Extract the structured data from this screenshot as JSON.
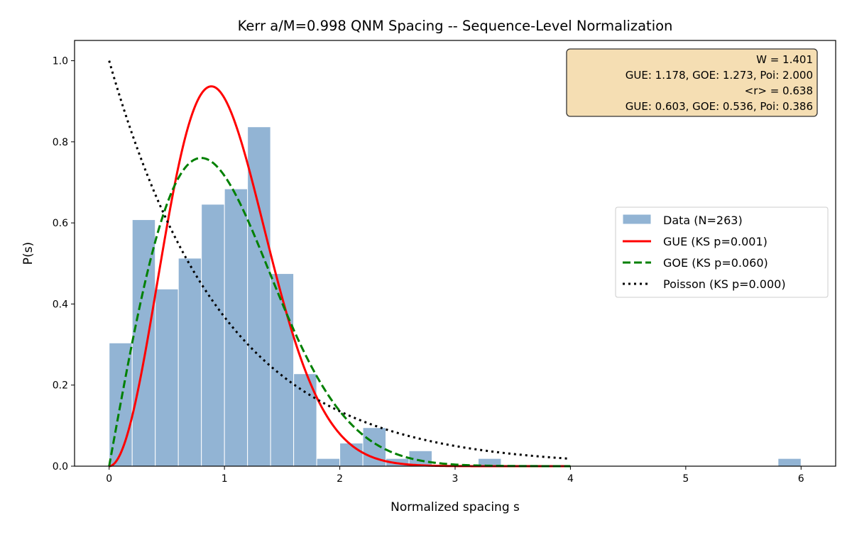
{
  "chart_data": {
    "type": "bar",
    "title": "Kerr a/M=0.998 QNM Spacing -- Sequence-Level Normalization",
    "xlabel": "Normalized spacing s",
    "ylabel": "P(s)",
    "xlim": [
      -0.3,
      6.3
    ],
    "ylim": [
      0,
      1.05
    ],
    "xticks": [
      0,
      1,
      2,
      3,
      4,
      5,
      6
    ],
    "yticks": [
      0.0,
      0.2,
      0.4,
      0.6,
      0.8,
      1.0
    ],
    "grid": false,
    "histogram": {
      "name": "Data (N=263)",
      "color": "#92b4d4",
      "bins": [
        {
          "left": 0.0,
          "right": 0.2,
          "value": 0.304
        },
        {
          "left": 0.2,
          "right": 0.4,
          "value": 0.608
        },
        {
          "left": 0.4,
          "right": 0.6,
          "value": 0.437
        },
        {
          "left": 0.6,
          "right": 0.8,
          "value": 0.513
        },
        {
          "left": 0.8,
          "right": 1.0,
          "value": 0.646
        },
        {
          "left": 1.0,
          "right": 1.2,
          "value": 0.684
        },
        {
          "left": 1.2,
          "right": 1.4,
          "value": 0.837
        },
        {
          "left": 1.4,
          "right": 1.6,
          "value": 0.475
        },
        {
          "left": 1.6,
          "right": 1.8,
          "value": 0.228
        },
        {
          "left": 1.8,
          "right": 2.0,
          "value": 0.019
        },
        {
          "left": 2.0,
          "right": 2.2,
          "value": 0.057
        },
        {
          "left": 2.2,
          "right": 2.4,
          "value": 0.095
        },
        {
          "left": 2.4,
          "right": 2.6,
          "value": 0.019
        },
        {
          "left": 2.6,
          "right": 2.8,
          "value": 0.038
        },
        {
          "left": 3.2,
          "right": 3.4,
          "value": 0.019
        },
        {
          "left": 5.8,
          "right": 6.0,
          "value": 0.019
        }
      ]
    },
    "series": [
      {
        "name": "GUE (KS p=0.001)",
        "kind": "GUE Wigner surmise",
        "color": "#ff0000",
        "style": "solid",
        "x_range": [
          0,
          4
        ]
      },
      {
        "name": "GOE (KS p=0.060)",
        "kind": "GOE Wigner surmise",
        "color": "#008000",
        "style": "dashed",
        "x_range": [
          0,
          4
        ]
      },
      {
        "name": "Poisson (KS p=0.000)",
        "kind": "Poisson exp(-s)",
        "color": "#000000",
        "style": "dotted",
        "x_range": [
          0,
          4
        ]
      }
    ],
    "legend_placement": "center-right",
    "annotation": {
      "lines": [
        "W = 1.401",
        "GUE: 1.178, GOE: 1.273, Poi: 2.000",
        "<r> = 0.638",
        "GUE: 0.603, GOE: 0.536, Poi: 0.386"
      ],
      "background": "#f5deb3",
      "placement": "top-right"
    }
  }
}
